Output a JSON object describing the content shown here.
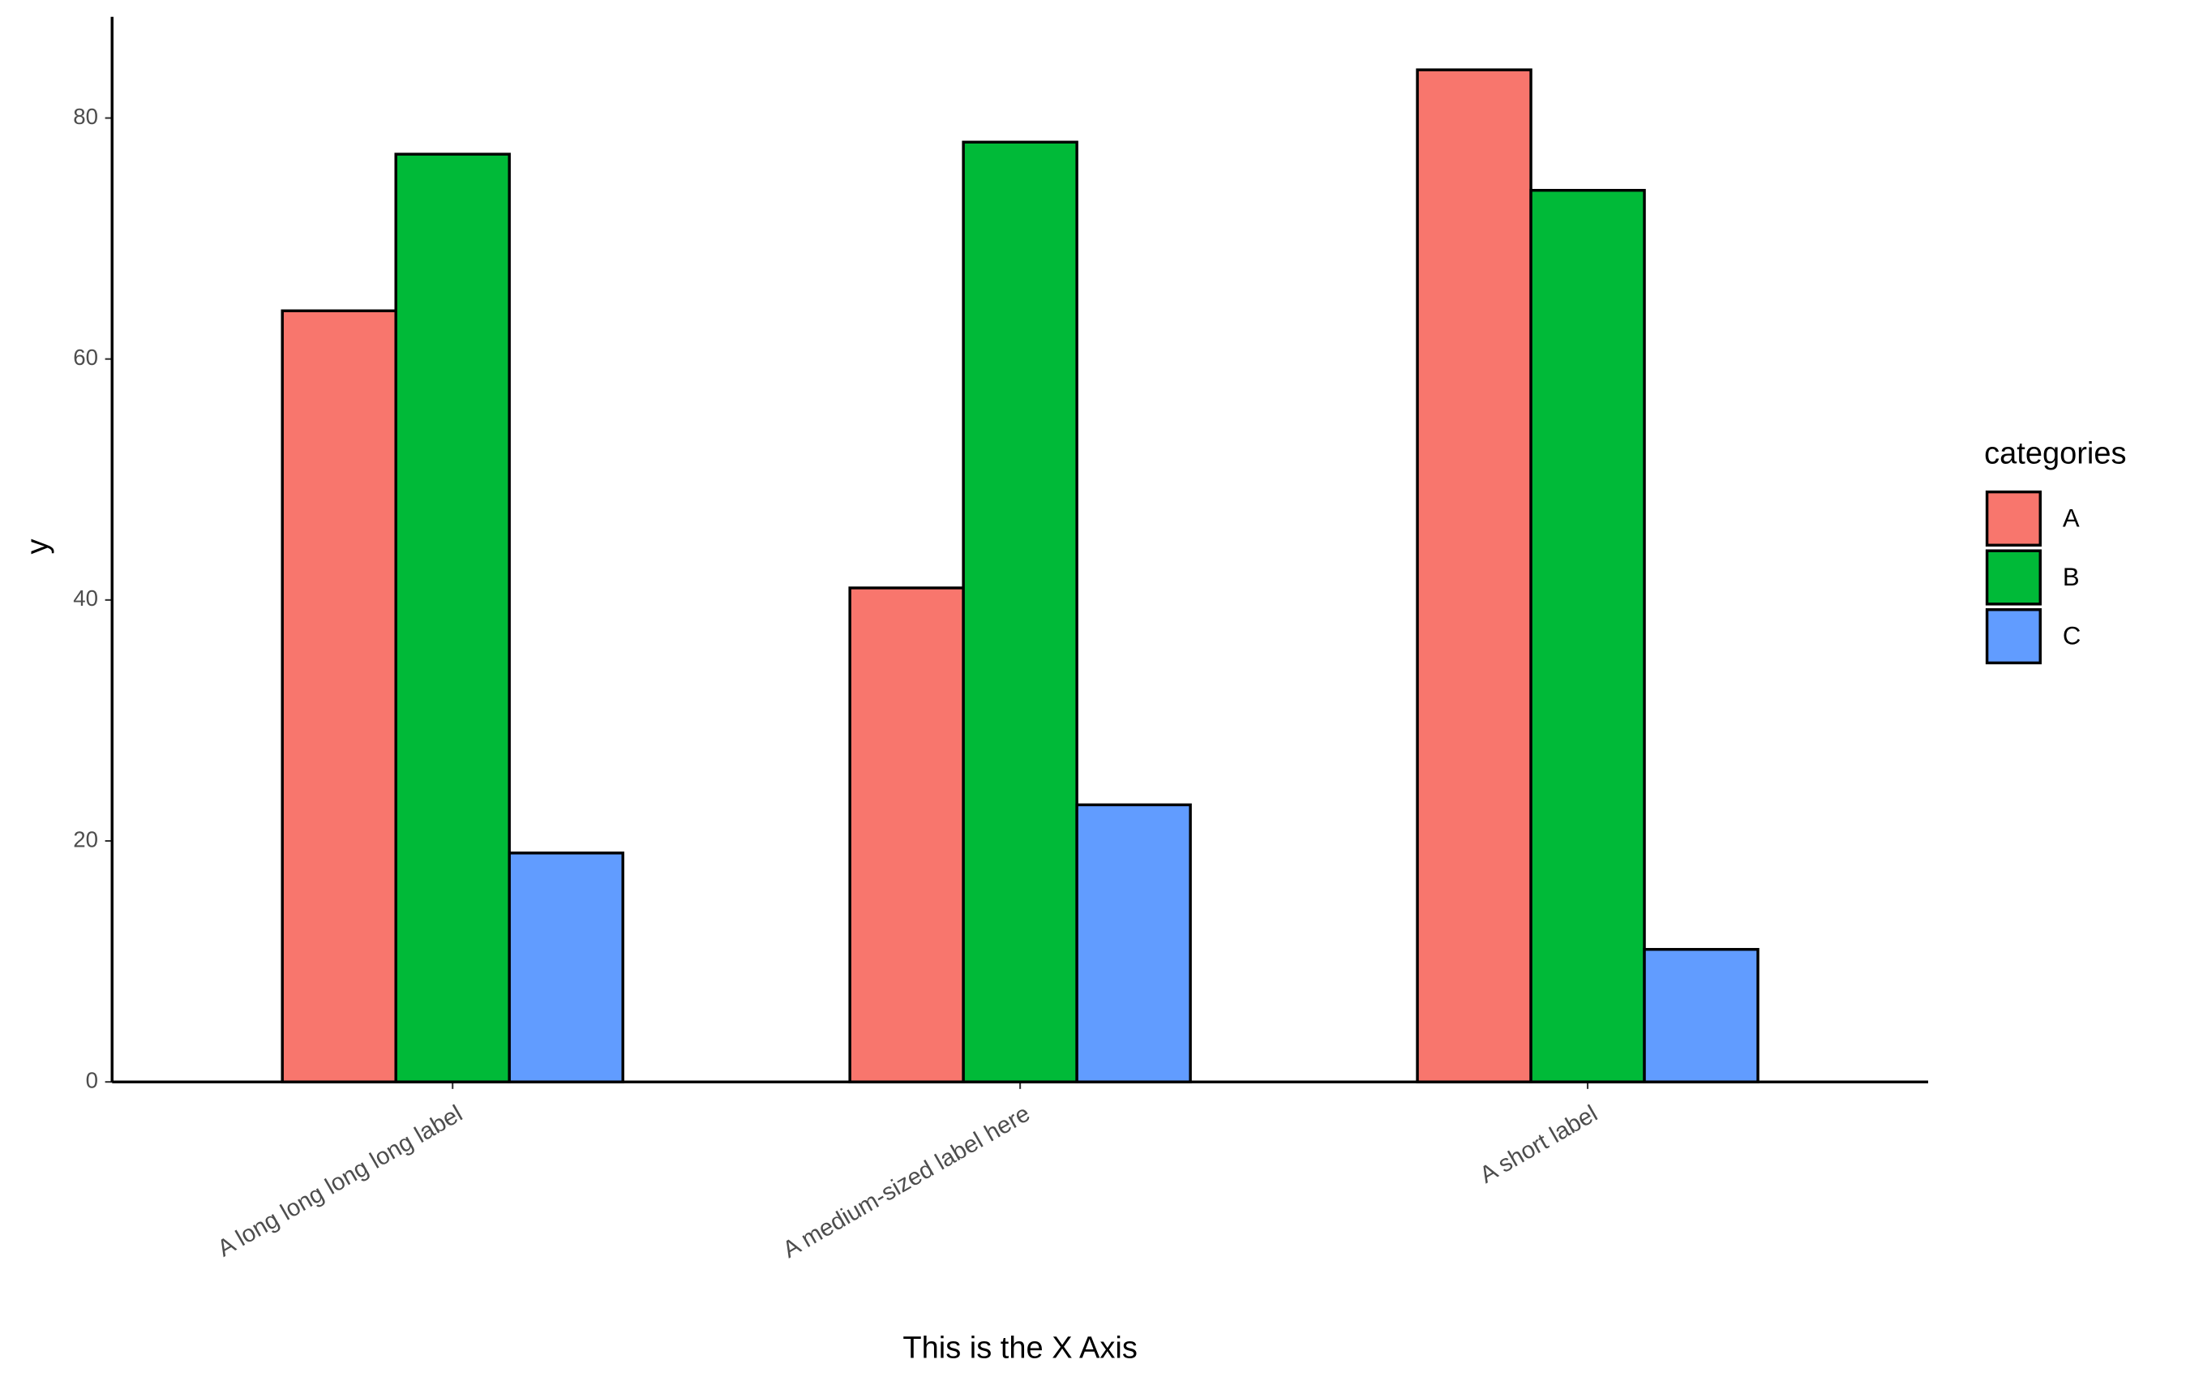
{
  "chart_data": {
    "type": "bar",
    "x_label": "This is the X Axis",
    "y_label": "y",
    "categories": [
      "A long long long long label",
      "A medium-sized label here",
      "A short label"
    ],
    "legend_title": "categories",
    "series": [
      {
        "name": "A",
        "color": "#f8766d",
        "values": [
          64,
          41,
          84
        ]
      },
      {
        "name": "B",
        "color": "#00ba38",
        "values": [
          77,
          78,
          74
        ]
      },
      {
        "name": "C",
        "color": "#619cff",
        "values": [
          19,
          23,
          11
        ]
      }
    ],
    "ylim": [
      0,
      88.4
    ],
    "yticks": [
      0,
      20,
      40,
      60,
      80
    ],
    "grid": false,
    "legend": "right"
  }
}
